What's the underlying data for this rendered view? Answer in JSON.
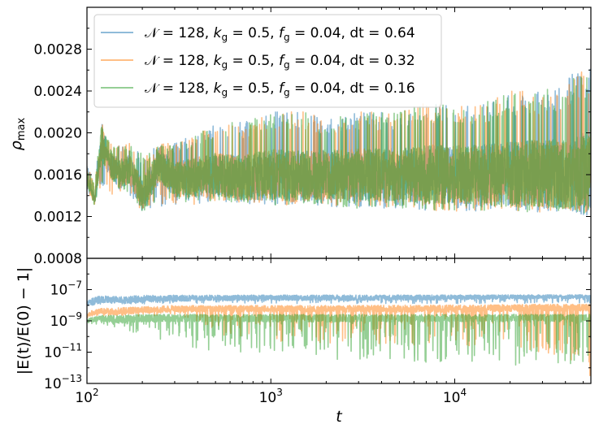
{
  "chart_data": [
    {
      "type": "line",
      "panel": "top",
      "ylabel": "ρmax",
      "ylabel_main": "ρ",
      "ylabel_sub": "max",
      "xscale": "log",
      "xlim": [
        100,
        55000
      ],
      "ylim": [
        0.0008,
        0.0032
      ],
      "y_ticks": [
        0.0008,
        0.0012,
        0.0016,
        0.002,
        0.0024,
        0.0028
      ],
      "y_tick_labels": [
        "0.0008",
        "0.0012",
        "0.0016",
        "0.0020",
        "0.0024",
        "0.0028"
      ],
      "legend_placement": "upper-left",
      "grid": false,
      "series": [
        {
          "name": "𝒩 = 128, k_g = 0.5, f_g = 0.04, dt = 0.64",
          "legend_parts": [
            "𝒩 = 128, ",
            "k",
            "g",
            " = 0.5, ",
            "f",
            "g",
            " = 0.04, dt = 0.64"
          ],
          "color": "#1f77b4",
          "x": [
            100,
            110,
            120,
            135,
            150,
            170,
            200,
            250,
            300,
            400,
            500,
            700,
            1000,
            1500,
            2000,
            3000,
            5000,
            7000,
            10000,
            15000,
            20000,
            30000,
            40000,
            50000
          ],
          "y_mid": [
            0.00158,
            0.00135,
            0.0019,
            0.0017,
            0.0016,
            0.00165,
            0.0014,
            0.0017,
            0.00155,
            0.00158,
            0.0016,
            0.00157,
            0.0016,
            0.00158,
            0.0016,
            0.0016,
            0.0016,
            0.0016,
            0.0016,
            0.0016,
            0.0016,
            0.00161,
            0.0016,
            0.0016
          ],
          "y_low": [
            0.00145,
            0.00133,
            0.0015,
            0.0014,
            0.0014,
            0.0014,
            0.00125,
            0.0013,
            0.0013,
            0.00132,
            0.00135,
            0.00133,
            0.0013,
            0.00132,
            0.0013,
            0.00128,
            0.00128,
            0.00126,
            0.00125,
            0.00125,
            0.00125,
            0.00124,
            0.00125,
            0.00125
          ],
          "y_high": [
            0.0017,
            0.0015,
            0.0021,
            0.0019,
            0.0019,
            0.0019,
            0.0018,
            0.0019,
            0.0019,
            0.002,
            0.0021,
            0.0021,
            0.0022,
            0.0022,
            0.00215,
            0.0022,
            0.0022,
            0.0023,
            0.00225,
            0.0023,
            0.0024,
            0.0024,
            0.0025,
            0.0027
          ]
        },
        {
          "name": "𝒩 = 128, k_g = 0.5, f_g = 0.04, dt = 0.32",
          "legend_parts": [
            "𝒩 = 128, ",
            "k",
            "g",
            " = 0.5, ",
            "f",
            "g",
            " = 0.04, dt = 0.32"
          ],
          "color": "#ff7f0e",
          "x": [
            100,
            110,
            120,
            135,
            150,
            170,
            200,
            250,
            300,
            400,
            500,
            700,
            1000,
            1500,
            2000,
            3000,
            5000,
            7000,
            10000,
            15000,
            20000,
            30000,
            40000,
            50000
          ],
          "y_mid": [
            0.00158,
            0.00135,
            0.0019,
            0.0017,
            0.0016,
            0.00165,
            0.0014,
            0.0017,
            0.00155,
            0.00158,
            0.0016,
            0.00157,
            0.0016,
            0.00158,
            0.0016,
            0.0016,
            0.0016,
            0.0016,
            0.0016,
            0.0016,
            0.0016,
            0.00161,
            0.0016,
            0.0016
          ],
          "y_low": [
            0.00145,
            0.00133,
            0.0015,
            0.0014,
            0.0014,
            0.0014,
            0.00125,
            0.0013,
            0.0013,
            0.00132,
            0.00135,
            0.00133,
            0.0013,
            0.00132,
            0.0013,
            0.00128,
            0.00128,
            0.00126,
            0.00125,
            0.00125,
            0.00125,
            0.00124,
            0.00125,
            0.00124
          ],
          "y_high": [
            0.0017,
            0.0015,
            0.0021,
            0.0019,
            0.0019,
            0.0019,
            0.0018,
            0.0019,
            0.0019,
            0.002,
            0.0021,
            0.0021,
            0.0022,
            0.0022,
            0.00215,
            0.0022,
            0.0022,
            0.0023,
            0.00225,
            0.0023,
            0.0024,
            0.0024,
            0.0025,
            0.0026
          ]
        },
        {
          "name": "𝒩 = 128, k_g = 0.5, f_g = 0.04, dt = 0.16",
          "legend_parts": [
            "𝒩 = 128, ",
            "k",
            "g",
            " = 0.5, ",
            "f",
            "g",
            " = 0.04, dt = 0.16"
          ],
          "color": "#2ca02c",
          "x": [
            100,
            110,
            120,
            135,
            150,
            170,
            200,
            250,
            300,
            400,
            500,
            700,
            1000,
            1500,
            2000,
            3000,
            5000,
            7000,
            10000,
            15000,
            20000,
            30000,
            40000,
            50000
          ],
          "y_mid": [
            0.00158,
            0.00135,
            0.0019,
            0.0017,
            0.0016,
            0.00165,
            0.0014,
            0.0017,
            0.00155,
            0.00158,
            0.0016,
            0.00157,
            0.0016,
            0.00158,
            0.0016,
            0.0016,
            0.0016,
            0.0016,
            0.0016,
            0.0016,
            0.0016,
            0.00161,
            0.0016,
            0.0016
          ],
          "y_low": [
            0.00145,
            0.00133,
            0.0015,
            0.0014,
            0.0014,
            0.0014,
            0.00125,
            0.0013,
            0.0013,
            0.00132,
            0.00135,
            0.00133,
            0.0013,
            0.00132,
            0.0013,
            0.00128,
            0.00128,
            0.00126,
            0.00125,
            0.00125,
            0.00125,
            0.00124,
            0.00125,
            0.00125
          ],
          "y_high": [
            0.0017,
            0.0015,
            0.0021,
            0.0019,
            0.0019,
            0.0019,
            0.0018,
            0.0019,
            0.0019,
            0.002,
            0.0021,
            0.0021,
            0.0022,
            0.0022,
            0.00215,
            0.0022,
            0.0022,
            0.0023,
            0.00225,
            0.0023,
            0.0024,
            0.0024,
            0.0025,
            0.0026
          ]
        }
      ]
    },
    {
      "type": "line",
      "panel": "bottom",
      "xlabel": "t",
      "ylabel": "|E(t)/E(0) − 1|",
      "xscale": "log",
      "yscale": "log",
      "xlim": [
        100,
        55000
      ],
      "ylim": [
        1e-13,
        1e-05
      ],
      "x_ticks": [
        100,
        1000,
        10000
      ],
      "x_tick_labels": [
        {
          "base": "10",
          "exp": "2"
        },
        {
          "base": "10",
          "exp": "3"
        },
        {
          "base": "10",
          "exp": "4"
        }
      ],
      "y_ticks": [
        1e-13,
        1e-11,
        1e-09,
        1e-07
      ],
      "y_tick_labels": [
        {
          "base": "10",
          "exp": "−13"
        },
        {
          "base": "10",
          "exp": "−11"
        },
        {
          "base": "10",
          "exp": "−9"
        },
        {
          "base": "10",
          "exp": "−7"
        }
      ],
      "series": [
        {
          "name": "dt = 0.64",
          "color": "#1f77b4",
          "x": [
            100,
            120,
            150,
            200,
            300,
            500,
            1000,
            3000,
            10000,
            30000,
            50000
          ],
          "y_mid": [
            1.2e-08,
            2.5e-08,
            2.2e-08,
            2.5e-08,
            2.8e-08,
            3e-08,
            3e-08,
            3e-08,
            3.2e-08,
            3.5e-08,
            3.5e-08
          ],
          "y_low": [
            8e-09,
            1.2e-08,
            1.2e-08,
            1.2e-08,
            1.3e-08,
            1.3e-08,
            1.3e-08,
            1.3e-08,
            1.3e-08,
            1.3e-08,
            1.3e-08
          ],
          "y_high": [
            2e-08,
            5e-08,
            4e-08,
            5e-08,
            5e-08,
            5e-08,
            5e-08,
            5e-08,
            5e-08,
            5e-08,
            5e-08
          ]
        },
        {
          "name": "dt = 0.32",
          "color": "#ff7f0e",
          "x": [
            100,
            120,
            150,
            200,
            300,
            500,
            1000,
            3000,
            10000,
            30000,
            50000
          ],
          "y_mid": [
            2.5e-09,
            4e-09,
            4e-09,
            5e-09,
            6e-09,
            6e-09,
            6e-09,
            6e-09,
            6e-09,
            7e-09,
            7e-09
          ],
          "y_low": [
            1.5e-09,
            2e-09,
            2e-09,
            2e-09,
            2e-09,
            1e-10,
            5e-11,
            3e-11,
            2e-11,
            1e-11,
            1e-13
          ],
          "y_high": [
            4e-09,
            7e-09,
            8e-09,
            9e-09,
            1.1e-08,
            1.1e-08,
            1.1e-08,
            1.1e-08,
            1.2e-08,
            1.3e-08,
            1.3e-08
          ]
        },
        {
          "name": "dt = 0.16",
          "color": "#2ca02c",
          "x": [
            100,
            120,
            150,
            200,
            300,
            500,
            1000,
            3000,
            10000,
            30000,
            50000
          ],
          "y_mid": [
            1e-09,
            1.5e-09,
            1.2e-09,
            1.5e-09,
            1.5e-09,
            1.5e-09,
            1.5e-09,
            1.5e-09,
            1.5e-09,
            1.5e-09,
            1.5e-09
          ],
          "y_low": [
            4e-10,
            6e-10,
            3e-10,
            1e-10,
            3e-11,
            1e-11,
            5e-12,
            3e-12,
            2e-12,
            1e-12,
            1e-12
          ],
          "y_high": [
            1.5e-09,
            2.5e-09,
            2.5e-09,
            3e-09,
            3e-09,
            3e-09,
            3e-09,
            3e-09,
            3e-09,
            3e-09,
            3e-09
          ]
        }
      ]
    }
  ]
}
